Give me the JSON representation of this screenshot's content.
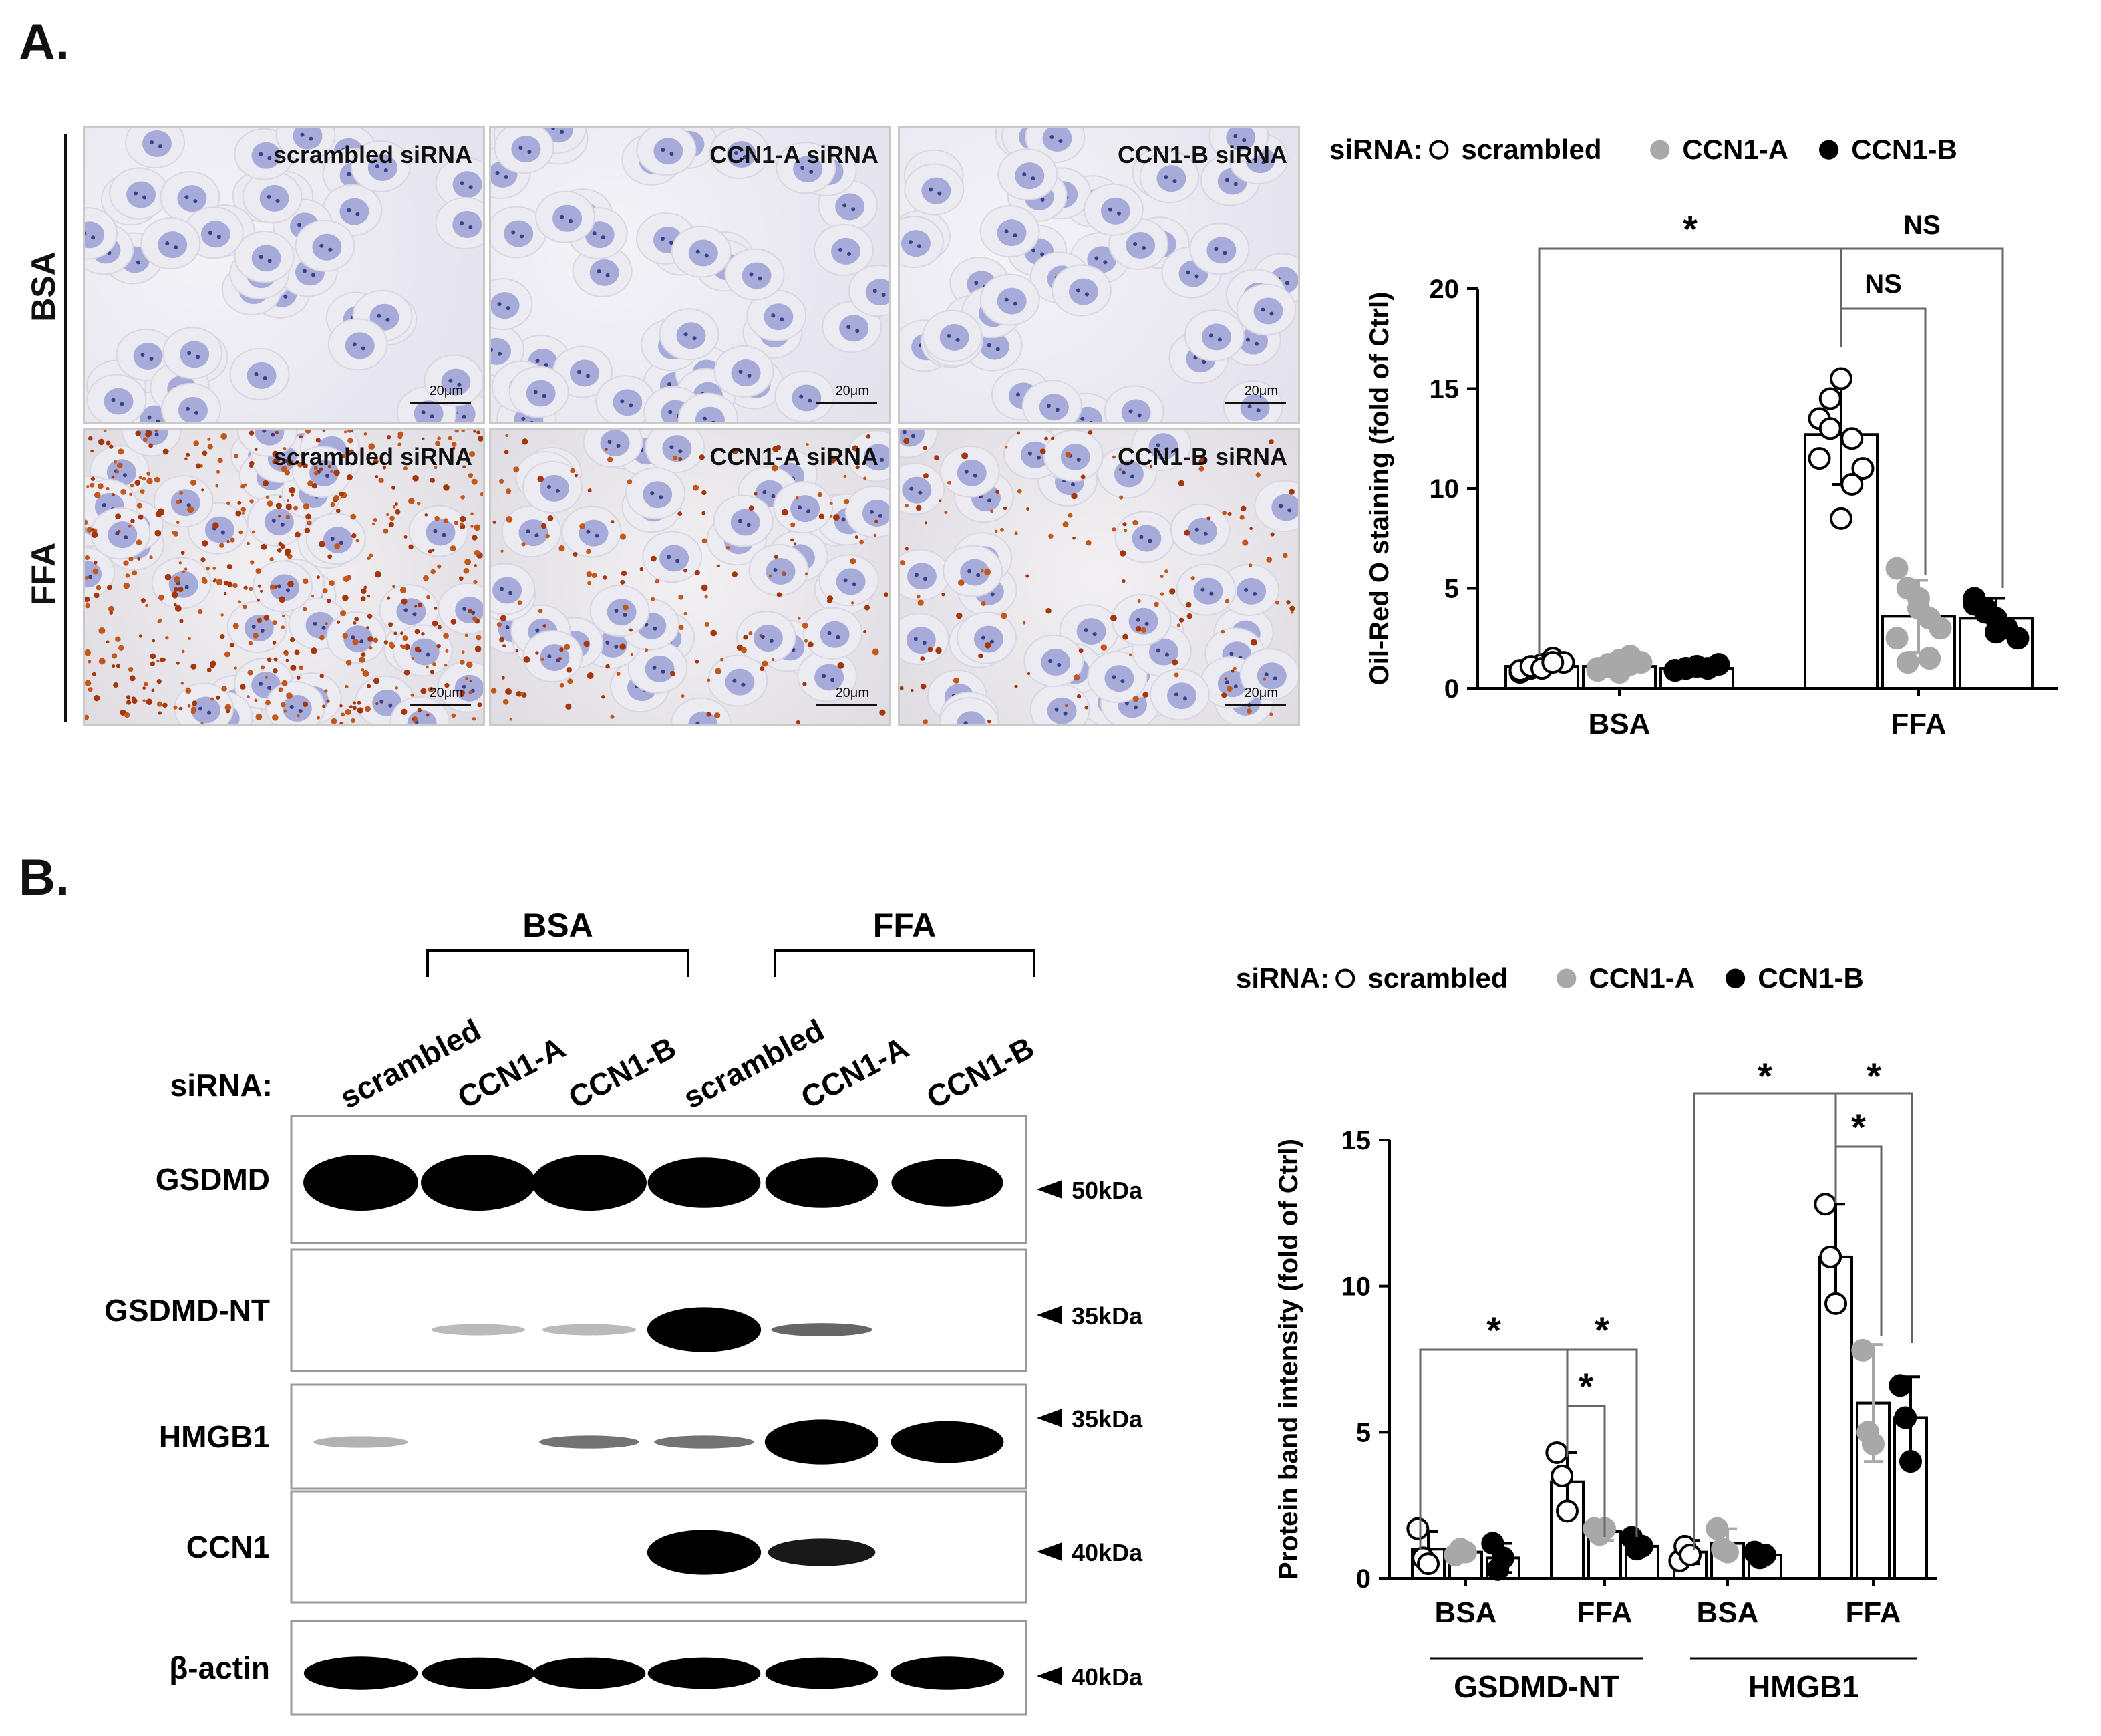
{
  "panelA": {
    "letter": "A.",
    "row_labels": [
      "BSA",
      "FFA"
    ],
    "micrographs": [
      {
        "label": "scrambled siRNA",
        "scale": "20μm"
      },
      {
        "label": "CCN1-A siRNA",
        "scale": "20μm"
      },
      {
        "label": "CCN1-B siRNA",
        "scale": "20μm"
      },
      {
        "label": "scrambled siRNA",
        "scale": "20μm"
      },
      {
        "label": "CCN1-A siRNA",
        "scale": "20μm"
      },
      {
        "label": "CCN1-B siRNA",
        "scale": "20μm"
      }
    ]
  },
  "panelB": {
    "letter": "B.",
    "group_labels": [
      "BSA",
      "FFA"
    ],
    "sirna_label": "siRNA:",
    "lanes": [
      "scrambled",
      "CCN1-A",
      "CCN1-B",
      "scrambled",
      "CCN1-A",
      "CCN1-B"
    ],
    "blots": [
      {
        "name": "GSDMD",
        "marker": "50kDa"
      },
      {
        "name": "GSDMD-NT",
        "marker": "35kDa"
      },
      {
        "name": "HMGB1",
        "marker": "35kDa"
      },
      {
        "name": "CCN1",
        "marker": "40kDa"
      },
      {
        "name": "β-actin",
        "marker": "40kDa"
      }
    ],
    "band_intensity": [
      [
        1.0,
        1.0,
        1.0,
        0.9,
        0.9,
        0.85
      ],
      [
        0.0,
        0.02,
        0.02,
        0.95,
        0.35,
        0.0
      ],
      [
        0.05,
        0.0,
        0.3,
        0.3,
        0.95,
        0.9
      ],
      [
        0.0,
        0.0,
        0.0,
        0.95,
        0.65,
        0.0
      ],
      [
        0.95,
        0.9,
        0.9,
        0.9,
        0.9,
        0.95
      ]
    ]
  },
  "chart_data": [
    {
      "type": "bar",
      "legend_prefix": "siRNA:",
      "series_names": [
        "scrambled",
        "CCN1-A",
        "CCN1-B"
      ],
      "categories": [
        "BSA",
        "FFA"
      ],
      "series": [
        {
          "name": "scrambled",
          "values": [
            1.1,
            12.7
          ],
          "errors": [
            0.3,
            2.5
          ],
          "points": [
            [
              0.8,
              1.0,
              1.2,
              1.5,
              1.3,
              0.9,
              1.1,
              1.0,
              1.3
            ],
            [
              13.5,
              14.5,
              15.5,
              12.5,
              11.0,
              11.5,
              13.0,
              8.5,
              10.2
            ]
          ]
        },
        {
          "name": "CCN1-A",
          "values": [
            1.1,
            3.6
          ],
          "errors": [
            0.4,
            1.8
          ],
          "points": [
            [
              0.9,
              1.2,
              1.4,
              1.6,
              1.3,
              1.0,
              1.1,
              0.8,
              1.2
            ],
            [
              6.0,
              5.0,
              4.5,
              3.5,
              3.0,
              2.5,
              1.3,
              4.0,
              1.5
            ]
          ]
        },
        {
          "name": "CCN1-B",
          "values": [
            1.0,
            3.5
          ],
          "errors": [
            0.2,
            1.0
          ],
          "points": [
            [
              0.9,
              1.0,
              1.1,
              1.0,
              1.2,
              0.9,
              1.0,
              1.1
            ],
            [
              4.5,
              4.0,
              3.5,
              3.0,
              2.5,
              4.2,
              3.8,
              2.8
            ]
          ]
        }
      ],
      "ylabel": "Oil-Red O staining (fold of Ctrl)",
      "ylim": [
        0,
        20
      ],
      "yticks": [
        0,
        5,
        10,
        15,
        20
      ],
      "significance": [
        "*",
        "NS",
        "NS"
      ]
    },
    {
      "type": "bar",
      "legend_prefix": "siRNA:",
      "series_names": [
        "scrambled",
        "CCN1-A",
        "CCN1-B"
      ],
      "categories": [
        "BSA",
        "FFA",
        "BSA",
        "FFA"
      ],
      "groups": [
        "GSDMD-NT",
        "HMGB1"
      ],
      "series": [
        {
          "name": "scrambled",
          "values": [
            1.0,
            3.3,
            0.9,
            11.0
          ],
          "errors": [
            0.6,
            1.0,
            0.4,
            1.8
          ],
          "points": [
            [
              1.7,
              0.7,
              0.5
            ],
            [
              4.3,
              3.5,
              2.3
            ],
            [
              0.6,
              1.1,
              0.8
            ],
            [
              12.8,
              11.0,
              9.4
            ]
          ]
        },
        {
          "name": "CCN1-A",
          "values": [
            0.9,
            1.6,
            1.2,
            6.0
          ],
          "errors": [
            0.2,
            0.3,
            0.5,
            2.0
          ],
          "points": [
            [
              0.8,
              1.0,
              0.9
            ],
            [
              1.7,
              1.5,
              1.7
            ],
            [
              1.7,
              1.0,
              0.9
            ],
            [
              7.8,
              5.0,
              4.6
            ]
          ]
        },
        {
          "name": "CCN1-B",
          "values": [
            0.7,
            1.1,
            0.8,
            5.5
          ],
          "errors": [
            0.5,
            0.2,
            0.1,
            1.4
          ],
          "points": [
            [
              1.2,
              0.3,
              0.7
            ],
            [
              1.4,
              1.0,
              1.1
            ],
            [
              0.9,
              0.7,
              0.8
            ],
            [
              6.6,
              5.5,
              4.0
            ]
          ]
        }
      ],
      "ylabel": "Protein band intensity (fold of Ctrl)",
      "ylim": [
        0,
        15
      ],
      "yticks": [
        0,
        5,
        10,
        15
      ],
      "significance": [
        "*",
        "*",
        "*",
        "*",
        "*",
        "*"
      ]
    }
  ]
}
